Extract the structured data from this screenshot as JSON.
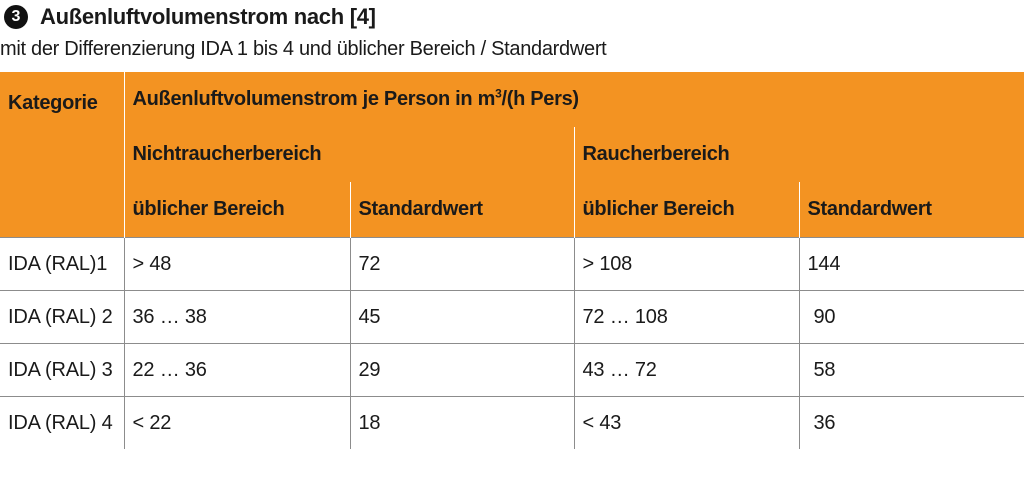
{
  "heading": {
    "number": "3",
    "title": "Außenluftvolumenstrom nach [4]",
    "subtitle": "mit der Differenzierung IDA 1 bis 4 und üblicher Bereich / Standardwert"
  },
  "table": {
    "header": {
      "kategorie": "Kategorie",
      "main": "Außenluftvolumenstrom je Person in m",
      "main_sup": "3",
      "main_unit": "/(h Pers)",
      "group_nonsmoker": "Nichtraucherbereich",
      "group_smoker": "Raucherbereich",
      "usual_range": "üblicher Bereich",
      "standard_value": "Standardwert"
    },
    "rows": [
      {
        "kategorie": "IDA (RAL)1",
        "ns_range": "> 48",
        "ns_std": "72",
        "s_range": "> 108",
        "s_std": "144"
      },
      {
        "kategorie": "IDA (RAL) 2",
        "ns_range": "36 … 38",
        "ns_std": "45",
        "s_range": "72 … 108",
        "s_std": "90"
      },
      {
        "kategorie": "IDA (RAL) 3",
        "ns_range": "22 … 36",
        "ns_std": "29",
        "s_range": "43 … 72",
        "s_std": "58"
      },
      {
        "kategorie": "IDA (RAL) 4",
        "ns_range": "< 22",
        "ns_std": "18",
        "s_range": "< 43",
        "s_std": "36"
      }
    ]
  },
  "colors": {
    "header_bg": "#f39322",
    "rule": "#8c8c8c"
  }
}
